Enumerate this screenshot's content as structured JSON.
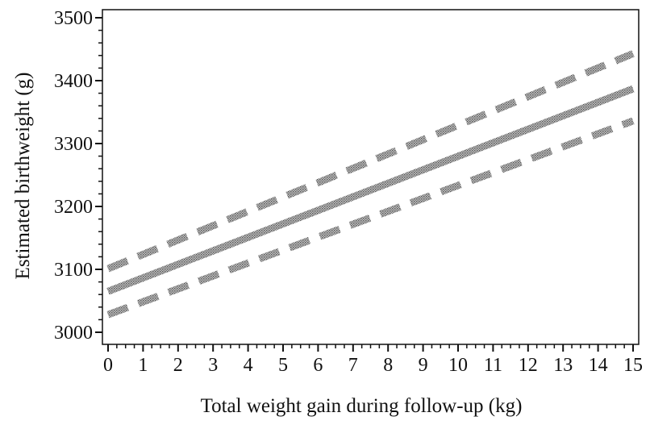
{
  "chart_data": {
    "type": "line",
    "xlabel": "Total weight gain during follow-up (kg)",
    "ylabel": "Estimated birthweight (g)",
    "xlim": [
      0,
      15
    ],
    "ylim": [
      3000,
      3500
    ],
    "x_ticks": [
      0,
      1,
      2,
      3,
      4,
      5,
      6,
      7,
      8,
      9,
      10,
      11,
      12,
      13,
      14,
      15
    ],
    "y_ticks": [
      3000,
      3100,
      3200,
      3300,
      3400,
      3500
    ],
    "grid": false,
    "series": [
      {
        "style": "solid",
        "color": "#8a8a8a",
        "x": [
          0,
          15
        ],
        "y": [
          3065,
          3387
        ]
      },
      {
        "style": "dashed",
        "color": "#8a8a8a",
        "x": [
          0,
          15
        ],
        "y": [
          3101,
          3443
        ]
      },
      {
        "style": "dashed",
        "color": "#8a8a8a",
        "x": [
          0,
          15
        ],
        "y": [
          3028,
          3336
        ]
      }
    ]
  }
}
